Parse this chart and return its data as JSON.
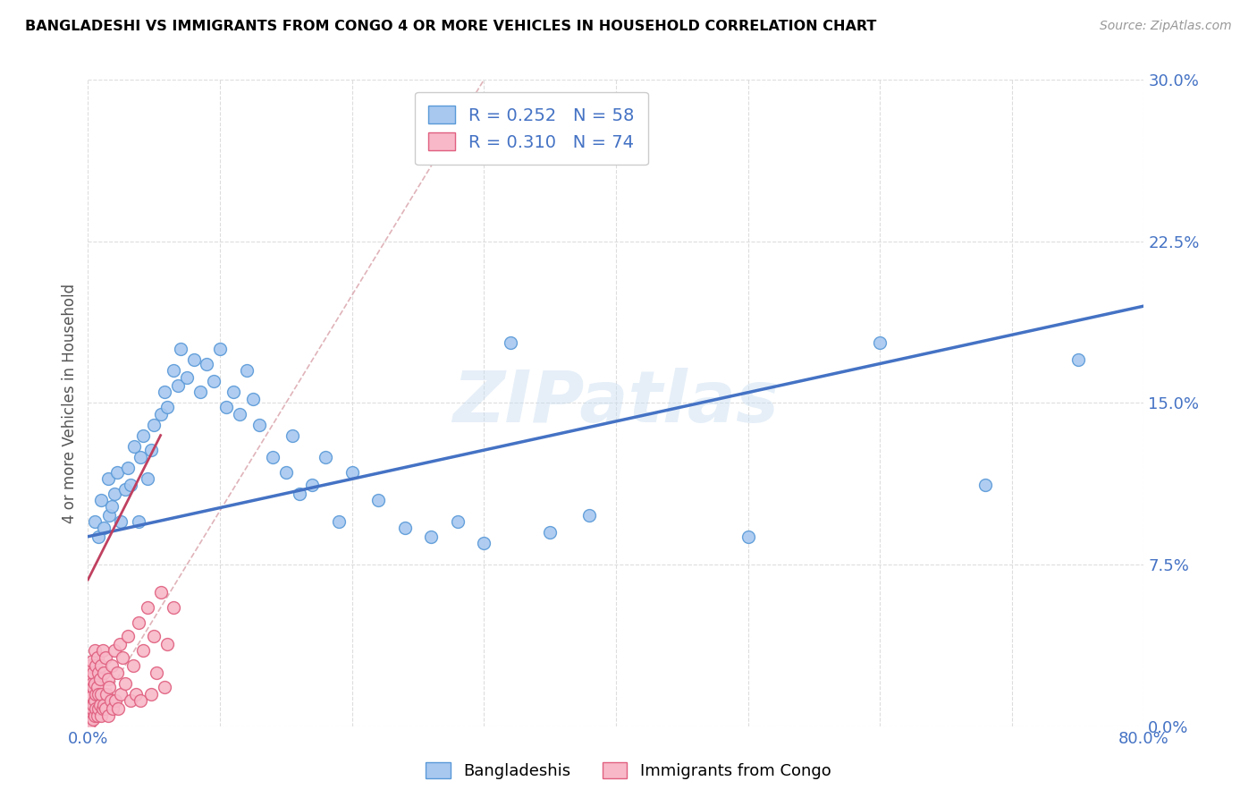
{
  "title": "BANGLADESHI VS IMMIGRANTS FROM CONGO 4 OR MORE VEHICLES IN HOUSEHOLD CORRELATION CHART",
  "source": "Source: ZipAtlas.com",
  "ylabel": "4 or more Vehicles in Household",
  "xlim": [
    0.0,
    0.8
  ],
  "ylim": [
    0.0,
    0.3
  ],
  "xticks": [
    0.0,
    0.1,
    0.2,
    0.3,
    0.4,
    0.5,
    0.6,
    0.7,
    0.8
  ],
  "yticks": [
    0.0,
    0.075,
    0.15,
    0.225,
    0.3
  ],
  "ytick_labels": [
    "0.0%",
    "7.5%",
    "15.0%",
    "22.5%",
    "30.0%"
  ],
  "color_bangladeshi_fill": "#a8c8f0",
  "color_bangladeshi_edge": "#5a9ad8",
  "color_congo_fill": "#f8b8c8",
  "color_congo_edge": "#e06080",
  "color_line_bangladeshi": "#4472c4",
  "color_line_congo": "#c04060",
  "legend1": "Bangladeshis",
  "legend2": "Immigrants from Congo",
  "watermark": "ZIPatlas",
  "bangladeshi_line_x": [
    0.0,
    0.8
  ],
  "bangladeshi_line_y": [
    0.088,
    0.195
  ],
  "congo_line_x": [
    0.0,
    0.055
  ],
  "congo_line_y": [
    0.068,
    0.135
  ],
  "dashed_line_x": [
    0.0,
    0.3
  ],
  "dashed_line_y": [
    0.0,
    0.3
  ],
  "bangladeshi_x": [
    0.005,
    0.008,
    0.01,
    0.012,
    0.015,
    0.016,
    0.018,
    0.02,
    0.022,
    0.025,
    0.028,
    0.03,
    0.032,
    0.035,
    0.038,
    0.04,
    0.042,
    0.045,
    0.048,
    0.05,
    0.055,
    0.058,
    0.06,
    0.065,
    0.068,
    0.07,
    0.075,
    0.08,
    0.085,
    0.09,
    0.095,
    0.1,
    0.105,
    0.11,
    0.115,
    0.12,
    0.125,
    0.13,
    0.14,
    0.15,
    0.155,
    0.16,
    0.17,
    0.18,
    0.19,
    0.2,
    0.22,
    0.24,
    0.26,
    0.28,
    0.3,
    0.32,
    0.35,
    0.38,
    0.5,
    0.6,
    0.68,
    0.75
  ],
  "bangladeshi_y": [
    0.095,
    0.088,
    0.105,
    0.092,
    0.115,
    0.098,
    0.102,
    0.108,
    0.118,
    0.095,
    0.11,
    0.12,
    0.112,
    0.13,
    0.095,
    0.125,
    0.135,
    0.115,
    0.128,
    0.14,
    0.145,
    0.155,
    0.148,
    0.165,
    0.158,
    0.175,
    0.162,
    0.17,
    0.155,
    0.168,
    0.16,
    0.175,
    0.148,
    0.155,
    0.145,
    0.165,
    0.152,
    0.14,
    0.125,
    0.118,
    0.135,
    0.108,
    0.112,
    0.125,
    0.095,
    0.118,
    0.105,
    0.092,
    0.088,
    0.095,
    0.085,
    0.178,
    0.09,
    0.098,
    0.088,
    0.178,
    0.112,
    0.17
  ],
  "congo_x": [
    0.001,
    0.001,
    0.001,
    0.001,
    0.001,
    0.002,
    0.002,
    0.002,
    0.002,
    0.002,
    0.002,
    0.003,
    0.003,
    0.003,
    0.003,
    0.003,
    0.004,
    0.004,
    0.004,
    0.004,
    0.005,
    0.005,
    0.005,
    0.005,
    0.006,
    0.006,
    0.006,
    0.007,
    0.007,
    0.007,
    0.008,
    0.008,
    0.008,
    0.009,
    0.009,
    0.01,
    0.01,
    0.01,
    0.011,
    0.011,
    0.012,
    0.012,
    0.013,
    0.013,
    0.014,
    0.015,
    0.015,
    0.016,
    0.017,
    0.018,
    0.019,
    0.02,
    0.021,
    0.022,
    0.023,
    0.024,
    0.025,
    0.026,
    0.028,
    0.03,
    0.032,
    0.034,
    0.036,
    0.038,
    0.04,
    0.042,
    0.045,
    0.048,
    0.05,
    0.052,
    0.055,
    0.058,
    0.06,
    0.065
  ],
  "congo_y": [
    0.005,
    0.008,
    0.012,
    0.018,
    0.025,
    0.002,
    0.006,
    0.01,
    0.015,
    0.022,
    0.028,
    0.004,
    0.008,
    0.014,
    0.02,
    0.03,
    0.003,
    0.01,
    0.018,
    0.025,
    0.005,
    0.012,
    0.02,
    0.035,
    0.008,
    0.015,
    0.028,
    0.005,
    0.018,
    0.032,
    0.008,
    0.015,
    0.025,
    0.01,
    0.022,
    0.005,
    0.015,
    0.028,
    0.008,
    0.035,
    0.01,
    0.025,
    0.008,
    0.032,
    0.015,
    0.005,
    0.022,
    0.018,
    0.012,
    0.028,
    0.008,
    0.035,
    0.012,
    0.025,
    0.008,
    0.038,
    0.015,
    0.032,
    0.02,
    0.042,
    0.012,
    0.028,
    0.015,
    0.048,
    0.012,
    0.035,
    0.055,
    0.015,
    0.042,
    0.025,
    0.062,
    0.018,
    0.038,
    0.055
  ]
}
